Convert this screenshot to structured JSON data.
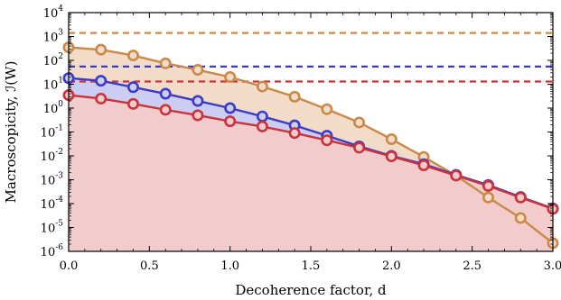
{
  "chart_data": {
    "type": "line",
    "xlabel": "Decoherence factor, d",
    "ylabel": "Macroscopicity, ℐ(W)",
    "xlim": [
      0.0,
      3.0
    ],
    "ylim_log10": [
      -6,
      4
    ],
    "y_scale": "log",
    "x_ticks": [
      "0.0",
      "0.5",
      "1.0",
      "1.5",
      "2.0",
      "2.5",
      "3.0"
    ],
    "y_ticks": [
      "10^-6",
      "10^-5",
      "10^-4",
      "10^-3",
      "10^-2",
      "10^-1",
      "10^0",
      "10^1",
      "10^2",
      "10^3",
      "10^4"
    ],
    "grid": false,
    "x": [
      0.0,
      0.2,
      0.4,
      0.6,
      0.8,
      1.0,
      1.2,
      1.4,
      1.6,
      1.8,
      2.0,
      2.2,
      2.4,
      2.6,
      2.8,
      3.0
    ],
    "series": [
      {
        "color": "#c8894a",
        "fill": "#f2dcc8",
        "values": [
          350,
          280,
          160,
          75,
          40,
          20,
          8,
          3,
          0.9,
          0.25,
          0.05,
          0.009,
          0.0015,
          0.00018,
          2.5e-05,
          2.2e-06
        ],
        "reference_level": 1400
      },
      {
        "color": "#3b3bc4",
        "fill": "#cccdf2",
        "values": [
          18,
          14,
          7.5,
          4,
          2,
          1,
          0.45,
          0.19,
          0.07,
          0.025,
          0.01,
          0.0045,
          0.0016,
          0.0006,
          0.00019,
          6.3e-05
        ],
        "reference_level": 55
      },
      {
        "color": "#c9333b",
        "fill": "#f2cccd",
        "values": [
          3.5,
          2.5,
          1.5,
          0.85,
          0.5,
          0.28,
          0.17,
          0.09,
          0.045,
          0.022,
          0.0095,
          0.004,
          0.0015,
          0.00055,
          0.00018,
          6e-05
        ],
        "reference_level": 13
      }
    ]
  }
}
